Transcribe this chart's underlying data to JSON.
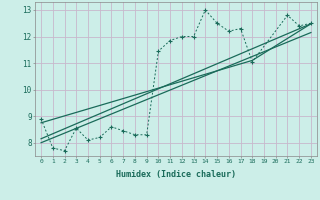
{
  "xlabel": "Humidex (Indice chaleur)",
  "bg_color": "#cceee8",
  "grid_color": "#c8b8cc",
  "line_color": "#1a6b5a",
  "xlim": [
    -0.5,
    23.5
  ],
  "ylim": [
    7.5,
    13.3
  ],
  "xticks": [
    0,
    1,
    2,
    3,
    4,
    5,
    6,
    7,
    8,
    9,
    10,
    11,
    12,
    13,
    14,
    15,
    16,
    17,
    18,
    19,
    20,
    21,
    22,
    23
  ],
  "yticks": [
    8,
    9,
    10,
    11,
    12,
    13
  ],
  "series_dotted": {
    "x": [
      0,
      1,
      2,
      3,
      4,
      5,
      6,
      7,
      8,
      9,
      10,
      11,
      12,
      13,
      14,
      15,
      16,
      17,
      18,
      21,
      22,
      23
    ],
    "y": [
      8.9,
      7.8,
      7.7,
      8.55,
      8.1,
      8.2,
      8.6,
      8.45,
      8.3,
      8.3,
      11.45,
      11.85,
      12.0,
      12.0,
      13.0,
      12.5,
      12.2,
      12.3,
      11.05,
      12.8,
      12.4,
      12.5
    ]
  },
  "series_line1": {
    "x": [
      0,
      1,
      2,
      3,
      4,
      5,
      6,
      7,
      8,
      9,
      10,
      11,
      12,
      13,
      14,
      15,
      16,
      17,
      18,
      21,
      22,
      23
    ],
    "y": [
      8.9,
      7.8,
      7.7,
      8.55,
      8.1,
      8.2,
      8.6,
      8.45,
      8.3,
      8.3,
      11.45,
      11.85,
      12.0,
      12.0,
      13.0,
      12.5,
      12.2,
      12.3,
      11.05,
      12.8,
      12.4,
      12.5
    ]
  },
  "line_straight1": {
    "x": [
      0,
      23
    ],
    "y": [
      8.0,
      12.15
    ]
  },
  "line_straight2": {
    "x": [
      0,
      23
    ],
    "y": [
      8.15,
      12.48
    ]
  },
  "line_straight3": {
    "x": [
      0,
      18,
      23
    ],
    "y": [
      8.75,
      11.1,
      12.48
    ]
  }
}
